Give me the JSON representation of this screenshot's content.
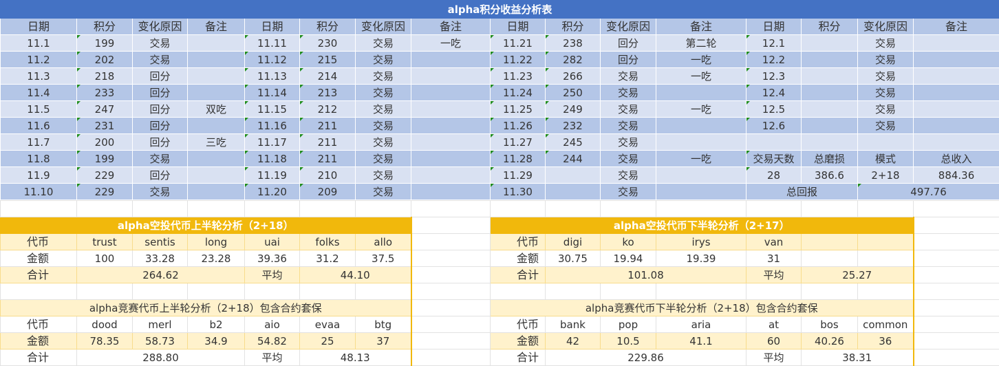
{
  "title": "alpha积分收益分析表",
  "headers": [
    "日期",
    "积分",
    "变化原因",
    "备注",
    "日期",
    "积分",
    "变化原因",
    "备注",
    "日期",
    "积分",
    "变化原因",
    "备注",
    "日期",
    "积分",
    "变化原因",
    "备注"
  ],
  "rows": [
    [
      "11.1",
      "199",
      "交易",
      "",
      "11.11",
      "230",
      "交易",
      "一吃",
      "11.21",
      "238",
      "回分",
      "第二轮",
      "12.1",
      "",
      "交易",
      ""
    ],
    [
      "11.2",
      "202",
      "交易",
      "",
      "11.12",
      "215",
      "交易",
      "",
      "11.22",
      "282",
      "回分",
      "一吃",
      "12.2",
      "",
      "交易",
      ""
    ],
    [
      "11.3",
      "218",
      "回分",
      "",
      "11.13",
      "214",
      "交易",
      "",
      "11.23",
      "266",
      "交易",
      "一吃",
      "12.3",
      "",
      "交易",
      ""
    ],
    [
      "11.4",
      "233",
      "回分",
      "",
      "11.14",
      "213",
      "交易",
      "",
      "11.24",
      "250",
      "交易",
      "",
      "12.4",
      "",
      "交易",
      ""
    ],
    [
      "11.5",
      "247",
      "回分",
      "双吃",
      "11.15",
      "212",
      "交易",
      "",
      "11.25",
      "249",
      "交易",
      "一吃",
      "12.5",
      "",
      "交易",
      ""
    ],
    [
      "11.6",
      "231",
      "回分",
      "",
      "11.16",
      "211",
      "交易",
      "",
      "11.26",
      "232",
      "交易",
      "",
      "12.6",
      "",
      "交易",
      ""
    ],
    [
      "11.7",
      "200",
      "回分",
      "三吃",
      "11.17",
      "211",
      "交易",
      "",
      "11.27",
      "245",
      "交易",
      "",
      "",
      "",
      "",
      ""
    ],
    [
      "11.8",
      "199",
      "交易",
      "",
      "11.18",
      "211",
      "交易",
      "",
      "11.28",
      "244",
      "交易",
      "一吃",
      "交易天数",
      "总磨损",
      "模式",
      "总收入"
    ],
    [
      "11.9",
      "229",
      "回分",
      "",
      "11.19",
      "210",
      "交易",
      "",
      "11.29",
      "",
      "交易",
      "",
      "28",
      "386.6",
      "2+18",
      "884.36"
    ],
    [
      "11.10",
      "229",
      "交易",
      "",
      "11.20",
      "209",
      "交易",
      "",
      "11.30",
      "",
      "交易",
      "",
      "总回报",
      "497.76"
    ]
  ],
  "sections": {
    "airdrop_upper": {
      "title": "alpha空投代币上半轮分析（2+18）",
      "label_token": "代币",
      "tokens": [
        "trust",
        "sentis",
        "long",
        "uai",
        "folks",
        "allo"
      ],
      "label_amount": "金额",
      "amounts": [
        "100",
        "33.28",
        "23.28",
        "39.36",
        "31.2",
        "37.5"
      ],
      "label_total": "合计",
      "total": "264.62",
      "label_avg": "平均",
      "avg": "44.10"
    },
    "airdrop_lower": {
      "title": "alpha空投代币下半轮分析（2+17）",
      "label_token": "代币",
      "tokens": [
        "digi",
        "ko",
        "irys",
        "van",
        "",
        ""
      ],
      "label_amount": "金额",
      "amounts": [
        "30.75",
        "19.94",
        "19.39",
        "31",
        "",
        ""
      ],
      "label_total": "合计",
      "total": "101.08",
      "label_avg": "平均",
      "avg": "25.27"
    },
    "contest_upper": {
      "title": "alpha竞赛代币上半轮分析（2+18）包含合约套保",
      "label_token": "代币",
      "tokens": [
        "dood",
        "merl",
        "b2",
        "aio",
        "evaa",
        "btg"
      ],
      "label_amount": "金额",
      "amounts": [
        "78.35",
        "58.73",
        "34.9",
        "54.82",
        "25",
        "37"
      ],
      "label_total": "合计",
      "total": "288.80",
      "label_avg": "平均",
      "avg": "48.13"
    },
    "contest_lower": {
      "title": "alpha竞赛代币下半轮分析（2+18）包含合约套保",
      "label_token": "代币",
      "tokens": [
        "bank",
        "pop",
        "aria",
        "at",
        "bos",
        "common"
      ],
      "label_amount": "金额",
      "amounts": [
        "42",
        "10.5",
        "41.1",
        "60",
        "40.26",
        "36"
      ],
      "label_total": "合计",
      "total": "229.86",
      "label_avg": "平均",
      "avg": "38.31"
    }
  },
  "colors": {
    "title_bg": "#4472C4",
    "header_bg": "#B4C6E7",
    "row_light": "#D9E1F2",
    "section_dark": "#F1B80C",
    "section_light": "#FFF2CC"
  }
}
